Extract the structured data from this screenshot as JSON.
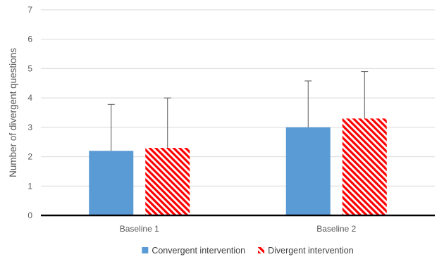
{
  "chart_data": {
    "type": "bar",
    "title": "",
    "xlabel": "",
    "ylabel": "Number of divergent questions",
    "ylim": [
      0,
      7
    ],
    "yticks": [
      0,
      1,
      2,
      3,
      4,
      5,
      6,
      7
    ],
    "grid": true,
    "legend_position": "bottom",
    "categories": [
      "Baseline 1",
      "Baseline 2"
    ],
    "series": [
      {
        "name": "Convergent intervention",
        "values": [
          2.2,
          3.0
        ],
        "error_upper": [
          3.78,
          4.58
        ],
        "color": "#5b9bd5",
        "pattern": "solid"
      },
      {
        "name": "Divergent intervention",
        "values": [
          2.3,
          3.3
        ],
        "error_upper": [
          4.0,
          4.9
        ],
        "color": "#ff0000",
        "pattern": "diagonal-stripes"
      }
    ]
  }
}
